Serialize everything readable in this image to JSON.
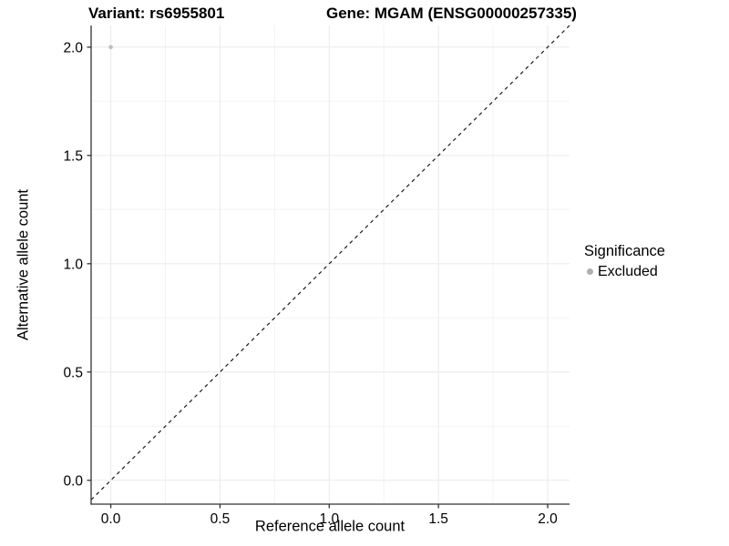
{
  "chart_data": {
    "type": "scatter",
    "title_variant": "Variant: rs6955801",
    "title_gene": "Gene: MGAM (ENSG00000257335)",
    "xlabel": "Reference allele count",
    "ylabel": "Alternative allele count",
    "xlim": [
      -0.09,
      2.1
    ],
    "ylim": [
      -0.11,
      2.1
    ],
    "x_ticks": [
      0,
      0.5,
      1,
      1.5,
      2
    ],
    "y_ticks": [
      0,
      0.5,
      1,
      1.5,
      2
    ],
    "x_tick_labels": [
      "0.0",
      "0.5",
      "1.0",
      "1.5",
      "2.0"
    ],
    "y_tick_labels": [
      "0.0",
      "0.5",
      "1.0",
      "1.5",
      "2.0"
    ],
    "x_minor_ticks": [
      0.25,
      0.75,
      1.25,
      1.75
    ],
    "y_minor_ticks": [
      0.25,
      0.75,
      1.25,
      1.75
    ],
    "grid": true,
    "series": [
      {
        "name": "Excluded",
        "color": "#bdbdbd",
        "points": [
          {
            "x": 0.0,
            "y": 2.0
          }
        ]
      }
    ],
    "reference_line": {
      "type": "identity",
      "style": "dashed",
      "color": "#000000"
    },
    "legend": {
      "title": "Significance",
      "position": "right",
      "entries": [
        {
          "label": "Excluded",
          "color": "#b0b0b0"
        }
      ]
    },
    "colors": {
      "background": "#ffffff",
      "grid_major": "#ebebeb",
      "grid_minor": "#f3f3f3",
      "axis_line": "#333333",
      "tick_mark": "#333333",
      "tick_text": "#000000",
      "point": "#bdbdbd",
      "dashed_line": "#1a1a1a"
    }
  }
}
